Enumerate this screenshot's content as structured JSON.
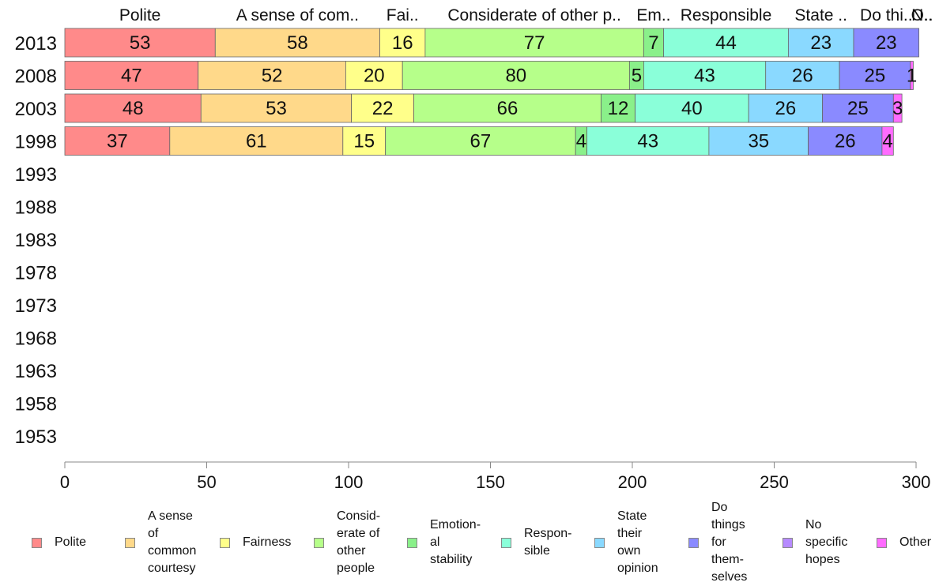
{
  "chart_data": {
    "type": "bar",
    "orientation": "horizontal",
    "stacked": true,
    "categories": [
      "2013",
      "2008",
      "2003",
      "1998",
      "1993",
      "1988",
      "1983",
      "1978",
      "1973",
      "1968",
      "1963",
      "1958",
      "1953"
    ],
    "series": [
      {
        "name": "Polite",
        "color": "#ff8a8a",
        "values": [
          53,
          47,
          48,
          37,
          null,
          null,
          null,
          null,
          null,
          null,
          null,
          null,
          null
        ]
      },
      {
        "name": "A sense of common courtesy",
        "color": "#ffd98a",
        "values": [
          58,
          52,
          53,
          61,
          null,
          null,
          null,
          null,
          null,
          null,
          null,
          null,
          null
        ]
      },
      {
        "name": "Fairness",
        "color": "#ffff8a",
        "values": [
          16,
          20,
          22,
          15,
          null,
          null,
          null,
          null,
          null,
          null,
          null,
          null,
          null
        ]
      },
      {
        "name": "Considerate of other people",
        "color": "#b6ff8a",
        "values": [
          77,
          80,
          66,
          67,
          null,
          null,
          null,
          null,
          null,
          null,
          null,
          null,
          null
        ]
      },
      {
        "name": "Emotional stability",
        "color": "#8af08a",
        "values": [
          7,
          5,
          12,
          4,
          null,
          null,
          null,
          null,
          null,
          null,
          null,
          null,
          null
        ]
      },
      {
        "name": "Responsible",
        "color": "#8affd9",
        "values": [
          44,
          43,
          40,
          43,
          null,
          null,
          null,
          null,
          null,
          null,
          null,
          null,
          null
        ]
      },
      {
        "name": "State their own opinion",
        "color": "#8ad9ff",
        "values": [
          23,
          26,
          26,
          35,
          null,
          null,
          null,
          null,
          null,
          null,
          null,
          null,
          null
        ]
      },
      {
        "name": "Do things for themselves",
        "color": "#8a8aff",
        "values": [
          23,
          25,
          25,
          26,
          null,
          null,
          null,
          null,
          null,
          null,
          null,
          null,
          null
        ]
      },
      {
        "name": "No specific hopes",
        "color": "#b68aff",
        "values": [
          0,
          0,
          0,
          0,
          null,
          null,
          null,
          null,
          null,
          null,
          null,
          null,
          null
        ]
      },
      {
        "name": "Other",
        "color": "#ff6cff",
        "values": [
          0,
          1,
          3,
          4,
          null,
          null,
          null,
          null,
          null,
          null,
          null,
          null,
          null
        ]
      }
    ],
    "top_labels": [
      "Polite",
      "A sense of com..",
      "Fai..",
      "Considerate of other p..",
      "Em..",
      "Responsible",
      "State ..",
      "Do thi..",
      "N..",
      "O.."
    ],
    "xlim": [
      0,
      300
    ],
    "xticks": [
      0,
      50,
      100,
      150,
      200,
      250,
      300
    ],
    "xlabel": "",
    "ylabel": "",
    "grid": false,
    "legend_position": "bottom"
  },
  "legend_labels": [
    "Polite",
    "A sense\nof\ncommon\ncourtesy",
    "Fairness",
    "Consid-\nerate of\nother\npeople",
    "Emotion-\nal\nstability",
    "Respon-\nsible",
    "State\ntheir\nown\nopinion",
    "Do\nthings\nfor\nthem-\nselves",
    "No\nspecific\nhopes",
    "Other"
  ]
}
